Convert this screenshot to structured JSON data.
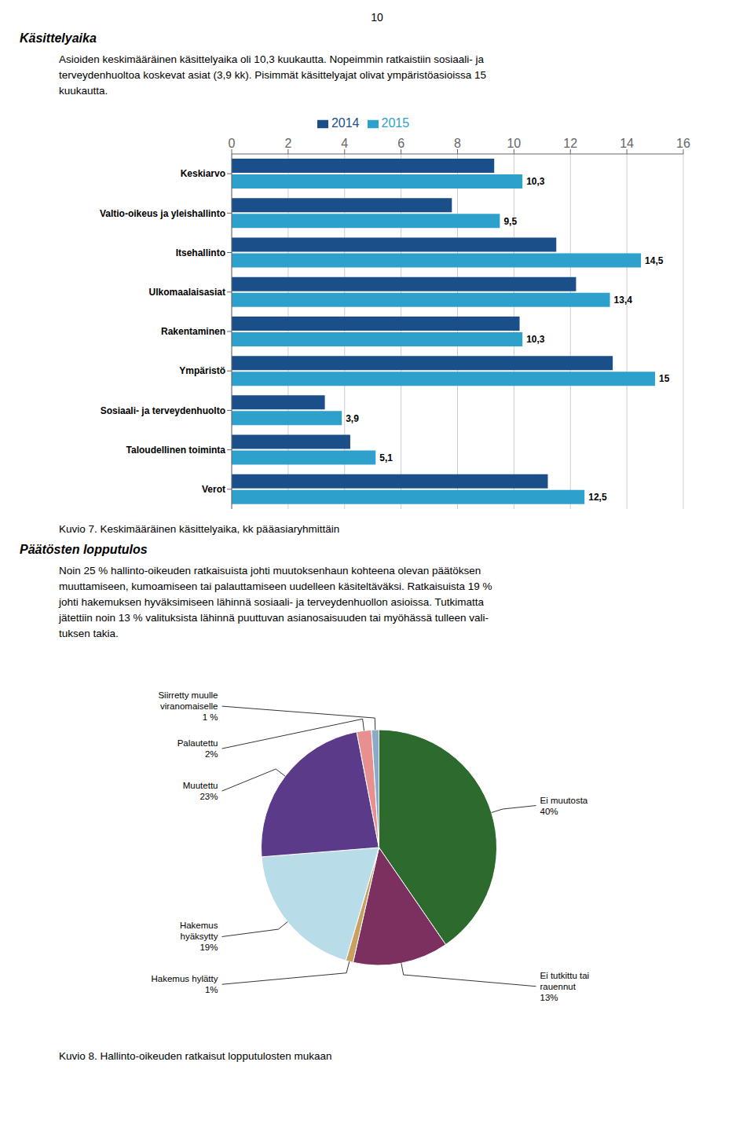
{
  "page_number": "10",
  "sections": [
    {
      "title": "Käsittelyaika",
      "paragraph": [
        "Asioiden keskimääräinen käsittelyaika oli 10,3 kuukautta. Nopeimmin ratkaistiin sosiaali- ja",
        "terveydenhuoltoa koskevat asiat (3,9 kk). Pisimmät käsittelyajat olivat ympäristöasioissa 15",
        "kuukautta."
      ]
    },
    {
      "title": "Päätösten lopputulos",
      "paragraph": [
        "Noin 25 % hallinto-oikeuden ratkaisuista johti muutoksenhaun kohteena olevan päätöksen",
        "muuttamiseen, kumoamiseen tai palauttamiseen uudelleen käsiteltäväksi. Ratkaisuista 19 %",
        "johti hakemuksen hyväksimiseen lähinnä sosiaali- ja terveydenhuollon asioissa. Tutkimatta",
        "jätettiin noin 13 % valituksista lähinnä puuttuvan asianosaisuuden tai myöhässä tulleen vali-",
        "tuksen takia."
      ]
    }
  ],
  "chart_data": [
    {
      "type": "bar",
      "title": "Kuvio 7. Keskimääräinen käsittelyaika, kk pääasiaryhmittäin",
      "orientation": "horizontal",
      "categories": [
        "Keskiarvo",
        "Valtio-oikeus ja yleishallinto",
        "Itsehallinto",
        "Ulkomaalaisasiat",
        "Rakentaminen",
        "Ympäristö",
        "Sosiaali- ja terveydenhuolto",
        "Taloudellinen toiminta",
        "Verot"
      ],
      "series": [
        {
          "name": "2014",
          "color": "#1A4F8A",
          "values": [
            9.3,
            7.8,
            11.5,
            12.2,
            10.2,
            13.5,
            3.3,
            4.2,
            11.2
          ]
        },
        {
          "name": "2015",
          "color": "#2EA0CC",
          "values": [
            10.3,
            9.5,
            14.5,
            13.4,
            10.3,
            15.0,
            3.9,
            5.1,
            12.5
          ],
          "value_labels": [
            "10,3",
            "9,5",
            "14,5",
            "13,4",
            "10,3",
            "15",
            "3,9",
            "5,1",
            "12,5"
          ]
        }
      ],
      "xlim": [
        0,
        16
      ],
      "xticks": [
        0,
        2,
        4,
        6,
        8,
        10,
        12,
        14,
        16
      ],
      "grid": true,
      "legend": "top",
      "data_labels": true
    },
    {
      "type": "pie",
      "title": "Kuvio 8. Hallinto-oikeuden ratkaisut lopputulosten mukaan",
      "categories": [
        "Ei muutosta",
        "Ei tutkittu tai\nrauennut",
        "Hakemus hylätty",
        "Hakemus\nhyäksytty",
        "Muutettu",
        "Palautettu",
        "Siirretty muulle\nviranomaiselle"
      ],
      "values": [
        40,
        13,
        1,
        19,
        23,
        2,
        1
      ],
      "value_labels": [
        "40%",
        "13%",
        "1%",
        "19%",
        "23%",
        "2%",
        "1 %"
      ],
      "colors": [
        "#2D6A2D",
        "#7B3060",
        "#C8A060",
        "#B8DCE8",
        "#5B3A8A",
        "#E89090",
        "#8AAAC8"
      ],
      "data_labels": true
    }
  ]
}
